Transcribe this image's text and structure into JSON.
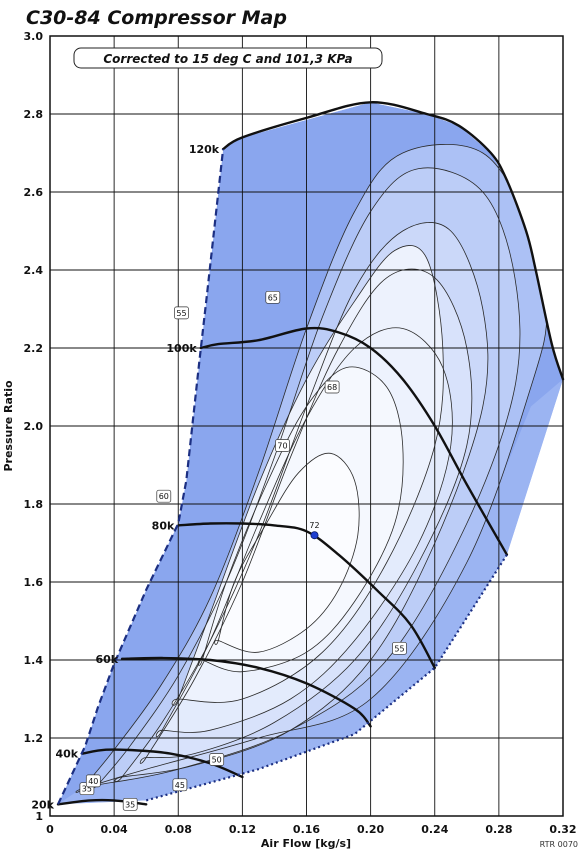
{
  "chart_data": {
    "type": "line",
    "title": "C30-84 Compressor Map",
    "subtitle": "Corrected to 15 deg C and 101,3 KPa",
    "xlabel": "Air Flow [kg/s]",
    "ylabel": "Pressure Ratio",
    "xlim": [
      0,
      0.32
    ],
    "ylim": [
      1,
      3
    ],
    "x_ticks": [
      "0",
      "0.04",
      "0.08",
      "0.12",
      "0.16",
      "0.20",
      "0.24",
      "0.28",
      "0.32"
    ],
    "y_ticks": [
      "1",
      "1.2",
      "1.4",
      "1.6",
      "1.8",
      "2.0",
      "2.2",
      "2.4",
      "2.6",
      "2.8",
      "3.0"
    ],
    "grid": true,
    "watermark": "RTR 0070",
    "map_boundary": [
      [
        0.005,
        1.03
      ],
      [
        0.06,
        1.04
      ],
      [
        0.095,
        1.08
      ],
      [
        0.13,
        1.12
      ],
      [
        0.19,
        1.21
      ],
      [
        0.24,
        1.38
      ],
      [
        0.285,
        1.67
      ],
      [
        0.32,
        2.12
      ],
      [
        0.313,
        2.21
      ],
      [
        0.303,
        2.4
      ],
      [
        0.297,
        2.5
      ],
      [
        0.285,
        2.63
      ],
      [
        0.275,
        2.7
      ],
      [
        0.255,
        2.77
      ],
      [
        0.235,
        2.8
      ],
      [
        0.2,
        2.83
      ],
      [
        0.12,
        2.74
      ],
      [
        0.108,
        2.71
      ],
      [
        0.098,
        2.34
      ],
      [
        0.093,
        2.16
      ],
      [
        0.085,
        1.86
      ],
      [
        0.08,
        1.75
      ],
      [
        0.06,
        1.58
      ],
      [
        0.04,
        1.39
      ],
      [
        0.03,
        1.28
      ],
      [
        0.022,
        1.18
      ],
      [
        0.005,
        1.03
      ]
    ],
    "surge_line": [
      [
        0.005,
        1.03
      ],
      [
        0.022,
        1.18
      ],
      [
        0.03,
        1.28
      ],
      [
        0.04,
        1.39
      ],
      [
        0.06,
        1.58
      ],
      [
        0.08,
        1.75
      ],
      [
        0.085,
        1.86
      ],
      [
        0.093,
        2.16
      ],
      [
        0.098,
        2.34
      ],
      [
        0.108,
        2.71
      ]
    ],
    "choke_line": [
      [
        0.06,
        1.04
      ],
      [
        0.095,
        1.08
      ],
      [
        0.13,
        1.12
      ],
      [
        0.19,
        1.21
      ],
      [
        0.24,
        1.38
      ],
      [
        0.285,
        1.67
      ]
    ],
    "speed_lines": [
      {
        "label": "20k",
        "points": [
          [
            0.005,
            1.03
          ],
          [
            0.025,
            1.04
          ],
          [
            0.04,
            1.04
          ],
          [
            0.06,
            1.03
          ]
        ]
      },
      {
        "label": "40k",
        "points": [
          [
            0.02,
            1.16
          ],
          [
            0.035,
            1.17
          ],
          [
            0.055,
            1.168
          ],
          [
            0.075,
            1.16
          ],
          [
            0.1,
            1.135
          ],
          [
            0.12,
            1.1
          ]
        ]
      },
      {
        "label": "60k",
        "points": [
          [
            0.045,
            1.403
          ],
          [
            0.07,
            1.405
          ],
          [
            0.1,
            1.4
          ],
          [
            0.13,
            1.38
          ],
          [
            0.16,
            1.34
          ],
          [
            0.19,
            1.275
          ],
          [
            0.2,
            1.23
          ]
        ]
      },
      {
        "label": "80k",
        "points": [
          [
            0.08,
            1.745
          ],
          [
            0.1,
            1.75
          ],
          [
            0.12,
            1.75
          ],
          [
            0.14,
            1.745
          ],
          [
            0.16,
            1.73
          ],
          [
            0.18,
            1.67
          ],
          [
            0.205,
            1.575
          ],
          [
            0.225,
            1.49
          ],
          [
            0.24,
            1.38
          ]
        ]
      },
      {
        "label": "100k",
        "points": [
          [
            0.094,
            2.2
          ],
          [
            0.105,
            2.21
          ],
          [
            0.13,
            2.22
          ],
          [
            0.16,
            2.25
          ],
          [
            0.18,
            2.24
          ],
          [
            0.2,
            2.2
          ],
          [
            0.22,
            2.12
          ],
          [
            0.24,
            2.0
          ],
          [
            0.26,
            1.85
          ],
          [
            0.285,
            1.67
          ]
        ]
      },
      {
        "label": "120k",
        "points": [
          [
            0.108,
            2.71
          ],
          [
            0.12,
            2.74
          ],
          [
            0.16,
            2.79
          ],
          [
            0.2,
            2.83
          ],
          [
            0.235,
            2.8
          ],
          [
            0.255,
            2.77
          ],
          [
            0.275,
            2.7
          ],
          [
            0.285,
            2.63
          ],
          [
            0.297,
            2.5
          ],
          [
            0.303,
            2.4
          ],
          [
            0.313,
            2.21
          ],
          [
            0.32,
            2.12
          ]
        ]
      }
    ],
    "efficiency_islands": [
      {
        "label": "35",
        "level": 1,
        "points": [
          [
            0.005,
            1.03
          ],
          [
            0.03,
            1.1
          ],
          [
            0.06,
            1.17
          ],
          [
            0.13,
            1.24
          ],
          [
            0.2,
            1.35
          ],
          [
            0.22,
            1.4
          ],
          [
            0.26,
            1.65
          ],
          [
            0.3,
            2.05
          ],
          [
            0.32,
            2.12
          ],
          [
            0.32,
            1.0
          ],
          [
            0.005,
            1.0
          ]
        ]
      },
      {
        "label": "40",
        "level": 2,
        "points": [
          [
            0.02,
            1.07
          ],
          [
            0.04,
            1.17
          ],
          [
            0.07,
            1.34
          ],
          [
            0.1,
            1.56
          ],
          [
            0.13,
            1.88
          ],
          [
            0.16,
            2.25
          ],
          [
            0.19,
            2.55
          ],
          [
            0.22,
            2.7
          ],
          [
            0.27,
            2.7
          ],
          [
            0.3,
            2.5
          ],
          [
            0.31,
            2.3
          ],
          [
            0.3,
            2.1
          ],
          [
            0.26,
            1.65
          ],
          [
            0.2,
            1.3
          ],
          [
            0.13,
            1.2
          ],
          [
            0.06,
            1.12
          ],
          [
            0.02,
            1.07
          ]
        ]
      },
      {
        "label": "45",
        "level": 3,
        "points": [
          [
            0.03,
            1.08
          ],
          [
            0.05,
            1.18
          ],
          [
            0.08,
            1.36
          ],
          [
            0.11,
            1.6
          ],
          [
            0.14,
            1.92
          ],
          [
            0.17,
            2.28
          ],
          [
            0.2,
            2.55
          ],
          [
            0.23,
            2.66
          ],
          [
            0.27,
            2.6
          ],
          [
            0.29,
            2.38
          ],
          [
            0.29,
            2.1
          ],
          [
            0.26,
            1.75
          ],
          [
            0.21,
            1.4
          ],
          [
            0.15,
            1.22
          ],
          [
            0.08,
            1.12
          ],
          [
            0.03,
            1.08
          ]
        ]
      },
      {
        "label": "50",
        "level": 4,
        "points": [
          [
            0.045,
            1.1
          ],
          [
            0.07,
            1.24
          ],
          [
            0.1,
            1.45
          ],
          [
            0.13,
            1.72
          ],
          [
            0.16,
            2.05
          ],
          [
            0.19,
            2.35
          ],
          [
            0.22,
            2.5
          ],
          [
            0.25,
            2.5
          ],
          [
            0.27,
            2.3
          ],
          [
            0.27,
            2.05
          ],
          [
            0.24,
            1.7
          ],
          [
            0.2,
            1.4
          ],
          [
            0.15,
            1.22
          ],
          [
            0.09,
            1.13
          ],
          [
            0.045,
            1.1
          ]
        ]
      },
      {
        "label": "55",
        "level": 5,
        "points": [
          [
            0.06,
            1.15
          ],
          [
            0.09,
            1.35
          ],
          [
            0.12,
            1.6
          ],
          [
            0.15,
            1.92
          ],
          [
            0.18,
            2.2
          ],
          [
            0.21,
            2.38
          ],
          [
            0.24,
            2.38
          ],
          [
            0.26,
            2.2
          ],
          [
            0.26,
            1.95
          ],
          [
            0.23,
            1.65
          ],
          [
            0.19,
            1.4
          ],
          [
            0.14,
            1.24
          ],
          [
            0.09,
            1.16
          ],
          [
            0.06,
            1.15
          ]
        ]
      },
      {
        "label": "60",
        "level": 6,
        "points": [
          [
            0.07,
            1.22
          ],
          [
            0.1,
            1.45
          ],
          [
            0.13,
            1.75
          ],
          [
            0.16,
            2.02
          ],
          [
            0.19,
            2.2
          ],
          [
            0.22,
            2.25
          ],
          [
            0.245,
            2.15
          ],
          [
            0.25,
            1.95
          ],
          [
            0.23,
            1.7
          ],
          [
            0.19,
            1.45
          ],
          [
            0.15,
            1.3
          ],
          [
            0.1,
            1.22
          ],
          [
            0.07,
            1.22
          ]
        ]
      },
      {
        "label": "65",
        "level": 7,
        "points": [
          [
            0.08,
            1.3
          ],
          [
            0.1,
            1.52
          ],
          [
            0.13,
            1.85
          ],
          [
            0.16,
            2.12
          ],
          [
            0.19,
            2.32
          ],
          [
            0.215,
            2.45
          ],
          [
            0.235,
            2.43
          ],
          [
            0.245,
            2.2
          ],
          [
            0.24,
            1.95
          ],
          [
            0.21,
            1.65
          ],
          [
            0.17,
            1.42
          ],
          [
            0.12,
            1.3
          ],
          [
            0.08,
            1.3
          ]
        ]
      },
      {
        "label": "68",
        "level": 8,
        "points": [
          [
            0.095,
            1.4
          ],
          [
            0.11,
            1.6
          ],
          [
            0.135,
            1.85
          ],
          [
            0.16,
            2.05
          ],
          [
            0.185,
            2.15
          ],
          [
            0.21,
            2.1
          ],
          [
            0.22,
            1.95
          ],
          [
            0.215,
            1.75
          ],
          [
            0.19,
            1.55
          ],
          [
            0.16,
            1.42
          ],
          [
            0.12,
            1.37
          ],
          [
            0.095,
            1.4
          ]
        ]
      },
      {
        "label": "70",
        "level": 9,
        "points": [
          [
            0.105,
            1.45
          ],
          [
            0.115,
            1.6
          ],
          [
            0.135,
            1.75
          ],
          [
            0.155,
            1.88
          ],
          [
            0.175,
            1.93
          ],
          [
            0.19,
            1.86
          ],
          [
            0.192,
            1.72
          ],
          [
            0.18,
            1.58
          ],
          [
            0.16,
            1.48
          ],
          [
            0.13,
            1.42
          ],
          [
            0.105,
            1.45
          ]
        ]
      }
    ],
    "efficiency_labels": [
      {
        "text": "35",
        "x": 0.023,
        "y": 1.07
      },
      {
        "text": "35",
        "x": 0.05,
        "y": 1.03
      },
      {
        "text": "40",
        "x": 0.027,
        "y": 1.09
      },
      {
        "text": "45",
        "x": 0.081,
        "y": 1.08
      },
      {
        "text": "50",
        "x": 0.104,
        "y": 1.145
      },
      {
        "text": "55",
        "x": 0.218,
        "y": 1.43
      },
      {
        "text": "55",
        "x": 0.082,
        "y": 2.29
      },
      {
        "text": "60",
        "x": 0.071,
        "y": 1.82
      },
      {
        "text": "65",
        "x": 0.139,
        "y": 2.33
      },
      {
        "text": "68",
        "x": 0.176,
        "y": 2.1
      },
      {
        "text": "70",
        "x": 0.145,
        "y": 1.95
      }
    ],
    "peak_point": {
      "label": "72",
      "x": 0.165,
      "y": 1.72
    }
  }
}
